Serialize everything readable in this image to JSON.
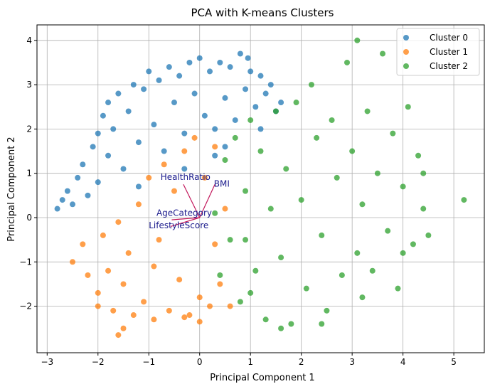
{
  "chart_data": {
    "type": "scatter",
    "title": "PCA with K-means Clusters",
    "xlabel": "Principal Component 1",
    "ylabel": "Principal Component 2",
    "xlim": [
      -3.2,
      5.6
    ],
    "ylim": [
      -3.05,
      4.35
    ],
    "xticks": [
      -3,
      -2,
      -1,
      0,
      1,
      2,
      3,
      4,
      5
    ],
    "yticks": [
      -2,
      -1,
      0,
      1,
      2,
      3,
      4
    ],
    "grid": true,
    "legend_position": "top-right",
    "series": [
      {
        "name": "Cluster 0",
        "color": "#1f77b4",
        "points": [
          [
            -2.8,
            0.2
          ],
          [
            -2.7,
            0.4
          ],
          [
            -2.6,
            0.6
          ],
          [
            -2.5,
            0.3
          ],
          [
            -2.4,
            0.9
          ],
          [
            -2.3,
            1.2
          ],
          [
            -2.2,
            0.5
          ],
          [
            -2.1,
            1.6
          ],
          [
            -2.0,
            1.9
          ],
          [
            -2.0,
            0.8
          ],
          [
            -1.9,
            2.3
          ],
          [
            -1.8,
            2.6
          ],
          [
            -1.8,
            1.4
          ],
          [
            -1.7,
            2.0
          ],
          [
            -1.6,
            2.8
          ],
          [
            -1.5,
            1.1
          ],
          [
            -1.4,
            2.4
          ],
          [
            -1.3,
            3.0
          ],
          [
            -1.2,
            1.7
          ],
          [
            -1.1,
            2.9
          ],
          [
            -1.0,
            3.3
          ],
          [
            -0.9,
            2.1
          ],
          [
            -0.8,
            3.1
          ],
          [
            -0.7,
            1.5
          ],
          [
            -0.6,
            3.4
          ],
          [
            -0.5,
            2.6
          ],
          [
            -0.4,
            3.2
          ],
          [
            -0.3,
            1.9
          ],
          [
            -0.2,
            3.5
          ],
          [
            -0.1,
            2.8
          ],
          [
            0.0,
            3.6
          ],
          [
            0.1,
            2.3
          ],
          [
            0.2,
            3.3
          ],
          [
            0.3,
            2.0
          ],
          [
            0.4,
            3.5
          ],
          [
            0.5,
            2.7
          ],
          [
            0.6,
            3.4
          ],
          [
            0.7,
            2.2
          ],
          [
            0.8,
            3.7
          ],
          [
            0.9,
            2.9
          ],
          [
            1.0,
            3.3
          ],
          [
            1.1,
            2.5
          ],
          [
            1.2,
            3.2
          ],
          [
            1.3,
            2.8
          ],
          [
            1.4,
            3.0
          ],
          [
            1.5,
            2.4
          ],
          [
            1.6,
            2.6
          ],
          [
            0.95,
            3.6
          ],
          [
            0.3,
            1.4
          ],
          [
            -0.3,
            1.1
          ],
          [
            -1.2,
            0.7
          ],
          [
            0.5,
            1.6
          ],
          [
            1.2,
            2.0
          ]
        ]
      },
      {
        "name": "Cluster 1",
        "color": "#ff7f0e",
        "points": [
          [
            -2.5,
            -1.0
          ],
          [
            -2.3,
            -0.6
          ],
          [
            -2.2,
            -1.3
          ],
          [
            -2.0,
            -1.7
          ],
          [
            -2.0,
            -2.0
          ],
          [
            -1.9,
            -0.4
          ],
          [
            -1.8,
            -1.2
          ],
          [
            -1.7,
            -2.1
          ],
          [
            -1.6,
            -0.1
          ],
          [
            -1.5,
            -1.5
          ],
          [
            -1.5,
            -2.5
          ],
          [
            -1.4,
            -0.8
          ],
          [
            -1.3,
            -2.2
          ],
          [
            -1.2,
            0.3
          ],
          [
            -1.1,
            -1.9
          ],
          [
            -1.0,
            0.9
          ],
          [
            -0.9,
            -2.3
          ],
          [
            -0.8,
            -0.5
          ],
          [
            -0.7,
            1.2
          ],
          [
            -0.6,
            -2.1
          ],
          [
            -0.5,
            0.6
          ],
          [
            -0.4,
            -1.4
          ],
          [
            -0.3,
            1.5
          ],
          [
            -0.2,
            -2.2
          ],
          [
            -0.1,
            1.8
          ],
          [
            0.0,
            -1.8
          ],
          [
            0.1,
            0.9
          ],
          [
            0.2,
            -2.0
          ],
          [
            0.3,
            1.6
          ],
          [
            0.4,
            -1.5
          ],
          [
            0.5,
            0.2
          ],
          [
            0.6,
            -2.0
          ],
          [
            0.0,
            -2.35
          ],
          [
            -1.6,
            -2.65
          ],
          [
            -0.3,
            -2.25
          ],
          [
            0.3,
            -0.6
          ],
          [
            -0.9,
            -1.1
          ]
        ]
      },
      {
        "name": "Cluster 2",
        "color": "#2ca02c",
        "points": [
          [
            0.3,
            0.1
          ],
          [
            0.4,
            -1.3
          ],
          [
            0.5,
            1.3
          ],
          [
            0.6,
            -0.5
          ],
          [
            0.7,
            1.8
          ],
          [
            0.8,
            -1.9
          ],
          [
            0.9,
            0.6
          ],
          [
            1.0,
            2.2
          ],
          [
            1.1,
            -1.2
          ],
          [
            1.2,
            1.5
          ],
          [
            1.3,
            -2.3
          ],
          [
            1.4,
            0.2
          ],
          [
            1.5,
            2.4
          ],
          [
            1.6,
            -0.9
          ],
          [
            1.7,
            1.1
          ],
          [
            1.8,
            -2.4
          ],
          [
            1.9,
            2.6
          ],
          [
            2.0,
            0.4
          ],
          [
            2.1,
            -1.6
          ],
          [
            2.2,
            3.0
          ],
          [
            2.3,
            1.8
          ],
          [
            2.4,
            -0.4
          ],
          [
            2.5,
            -2.1
          ],
          [
            2.6,
            2.2
          ],
          [
            2.7,
            0.9
          ],
          [
            2.8,
            -1.3
          ],
          [
            2.9,
            3.5
          ],
          [
            3.0,
            1.5
          ],
          [
            3.1,
            -0.8
          ],
          [
            3.1,
            4.0
          ],
          [
            3.2,
            0.3
          ],
          [
            3.3,
            2.4
          ],
          [
            3.4,
            -1.2
          ],
          [
            3.5,
            1.0
          ],
          [
            3.6,
            3.7
          ],
          [
            3.7,
            -0.3
          ],
          [
            3.8,
            1.9
          ],
          [
            3.9,
            -1.6
          ],
          [
            4.0,
            0.7
          ],
          [
            4.1,
            2.5
          ],
          [
            4.2,
            -0.6
          ],
          [
            4.3,
            1.4
          ],
          [
            4.4,
            0.2
          ],
          [
            4.5,
            -0.4
          ],
          [
            4.4,
            1.0
          ],
          [
            5.2,
            0.4
          ],
          [
            4.0,
            -0.8
          ],
          [
            3.2,
            -1.8
          ],
          [
            2.4,
            -2.4
          ],
          [
            1.6,
            -2.5
          ],
          [
            1.0,
            -1.7
          ],
          [
            0.9,
            -0.5
          ]
        ]
      }
    ],
    "loading_vectors": [
      {
        "label": "HealthRatio",
        "dx": -0.32,
        "dy": 0.75,
        "label_x": -0.77,
        "label_y": 0.85
      },
      {
        "label": "BMI",
        "dx": 0.3,
        "dy": 0.75,
        "label_x": 0.28,
        "label_y": 0.7
      },
      {
        "label": "AgeCategory",
        "dx": -0.55,
        "dy": -0.05,
        "label_x": -0.85,
        "label_y": 0.04
      },
      {
        "label": "LifestyleScore",
        "dx": -0.57,
        "dy": -0.2,
        "label_x": -1.0,
        "label_y": -0.24
      }
    ]
  }
}
